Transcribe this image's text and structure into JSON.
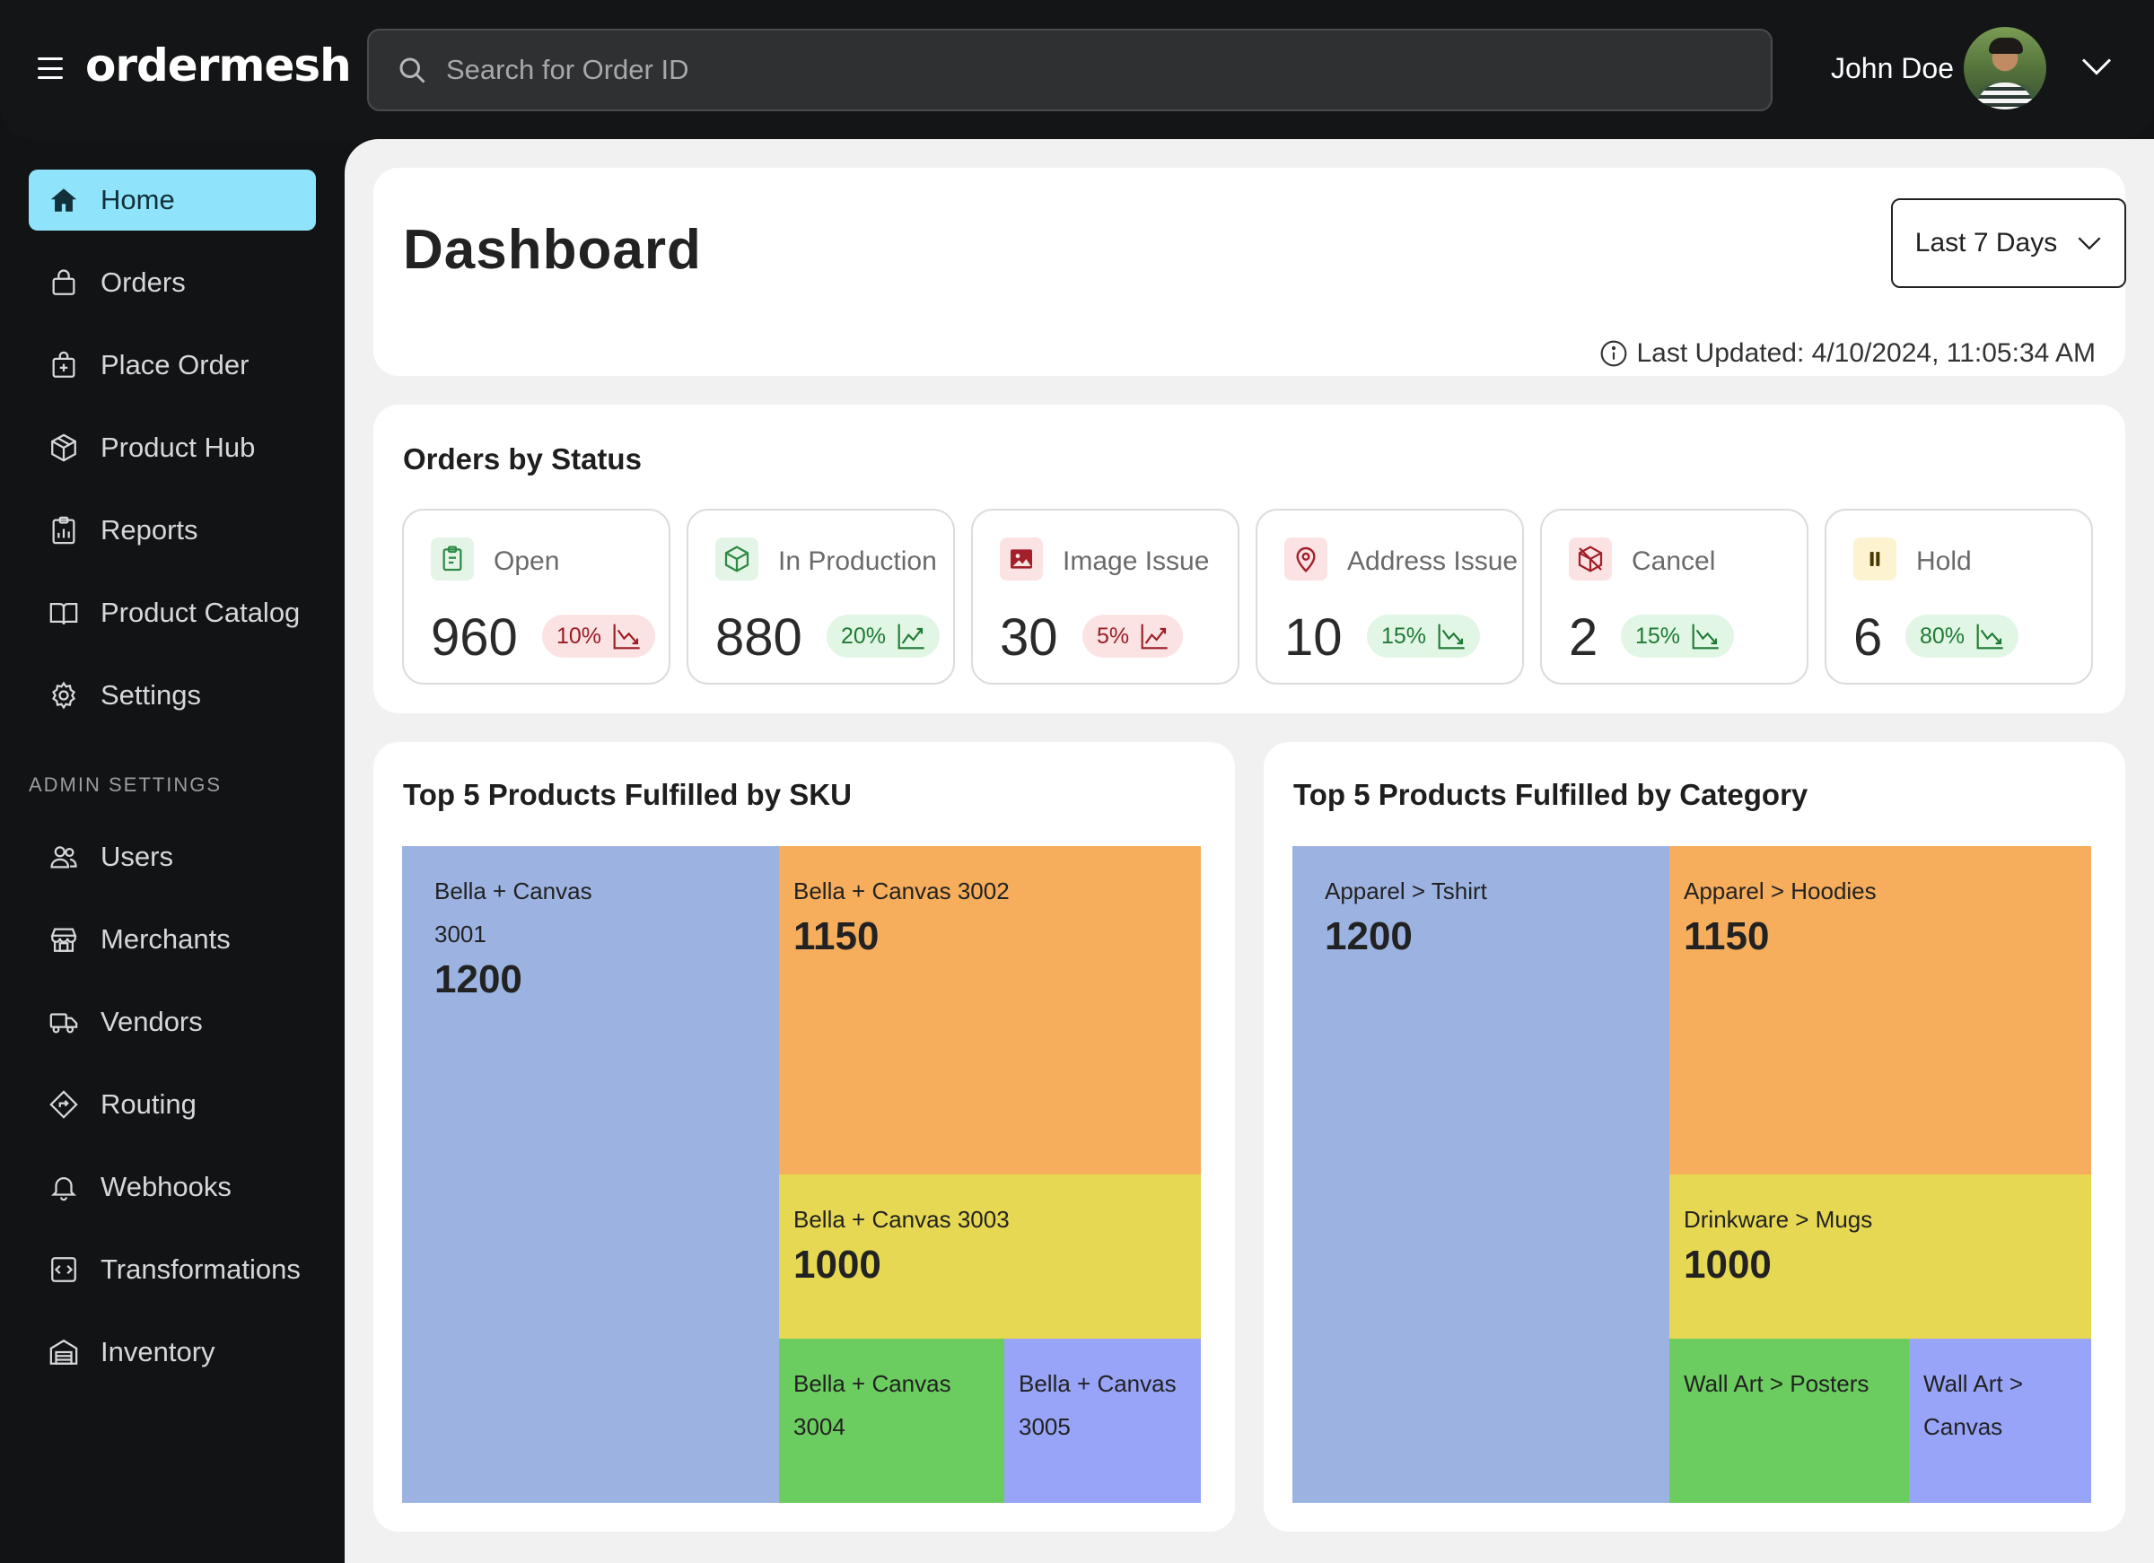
{
  "app": {
    "brand": "ordermesh"
  },
  "search": {
    "placeholder": "Search for Order ID",
    "value": ""
  },
  "user": {
    "name": "John Doe"
  },
  "sidebar": {
    "items": [
      {
        "label": "Home",
        "icon": "home-icon",
        "active": true
      },
      {
        "label": "Orders",
        "icon": "shopping-bag-icon"
      },
      {
        "label": "Place Order",
        "icon": "bag-plus-icon"
      },
      {
        "label": "Product Hub",
        "icon": "box-icon"
      },
      {
        "label": "Reports",
        "icon": "report-icon"
      },
      {
        "label": "Product Catalog",
        "icon": "book-icon"
      },
      {
        "label": "Settings",
        "icon": "gear-icon"
      }
    ],
    "admin_title": "ADMIN SETTINGS",
    "admin_items": [
      {
        "label": "Users",
        "icon": "users-icon"
      },
      {
        "label": "Merchants",
        "icon": "store-icon"
      },
      {
        "label": "Vendors",
        "icon": "truck-icon"
      },
      {
        "label": "Routing",
        "icon": "route-icon"
      },
      {
        "label": "Webhooks",
        "icon": "bell-icon"
      },
      {
        "label": "Transformations",
        "icon": "code-icon"
      },
      {
        "label": "Inventory",
        "icon": "warehouse-icon"
      }
    ]
  },
  "dashboard": {
    "title": "Dashboard",
    "range": "Last 7 Days",
    "last_updated": "Last Updated: 4/10/2024, 11:05:34 AM"
  },
  "status": {
    "title": "Orders by Status",
    "tiles": [
      {
        "label": "Open",
        "count": "960",
        "pct": "10%",
        "trend": "down",
        "tone": "red",
        "icon": "clipboard-icon",
        "icon_bg": "#e4f5e7",
        "icon_color": "#2e8a45"
      },
      {
        "label": "In Production",
        "count": "880",
        "pct": "20%",
        "trend": "up",
        "tone": "green",
        "icon": "box-icon",
        "icon_bg": "#e4f5e7",
        "icon_color": "#2e8a45"
      },
      {
        "label": "Image Issue",
        "count": "30",
        "pct": "5%",
        "trend": "up",
        "tone": "red",
        "icon": "image-icon",
        "icon_bg": "#fbe3e4",
        "icon_color": "#a3202a"
      },
      {
        "label": "Address Issue",
        "count": "10",
        "pct": "15%",
        "trend": "down",
        "tone": "green",
        "icon": "location-pin-icon",
        "icon_bg": "#fbe3e4",
        "icon_color": "#a3202a"
      },
      {
        "label": "Cancel",
        "count": "2",
        "pct": "15%",
        "trend": "down",
        "tone": "green",
        "icon": "cancelled-box-icon",
        "icon_bg": "#fbe3e4",
        "icon_color": "#a3202a"
      },
      {
        "label": "Hold",
        "count": "6",
        "pct": "80%",
        "trend": "down",
        "tone": "green",
        "icon": "pause-icon",
        "icon_bg": "#fdf3d0",
        "icon_color": "#4a3a00"
      }
    ]
  },
  "colors": {
    "accent": "#8fe3fb",
    "tm_blue": "#9cb3e1",
    "tm_orange": "#f6ad5c",
    "tm_yellow": "#e6d852",
    "tm_green": "#6bcd5f",
    "tm_violet": "#98a4f8"
  },
  "charts": {
    "sku": {
      "title": "Top 5 Products Fulfilled by SKU",
      "cells": [
        {
          "name": "Bella + Canvas 3001",
          "value": "1200"
        },
        {
          "name": "Bella + Canvas 3002",
          "value": "1150"
        },
        {
          "name": "Bella + Canvas 3003",
          "value": "1000"
        },
        {
          "name": "Bella + Canvas 3004",
          "value": ""
        },
        {
          "name": "Bella + Canvas 3005",
          "value": ""
        }
      ]
    },
    "category": {
      "title": "Top 5 Products Fulfilled by Category",
      "cells": [
        {
          "name": "Apparel > Tshirt",
          "value": "1200"
        },
        {
          "name": "Apparel > Hoodies",
          "value": "1150"
        },
        {
          "name": "Drinkware > Mugs",
          "value": "1000"
        },
        {
          "name": "Wall Art > Posters",
          "value": ""
        },
        {
          "name": "Wall Art > Canvas",
          "value": ""
        }
      ]
    }
  }
}
